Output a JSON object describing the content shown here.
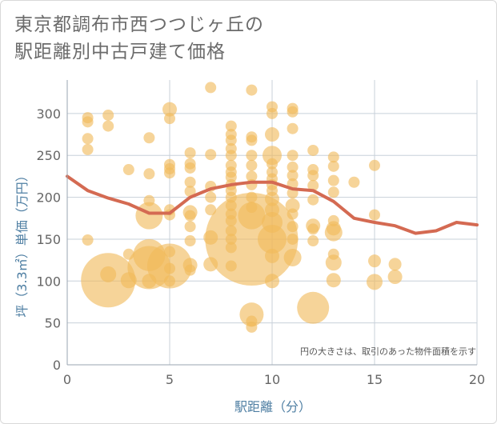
{
  "chart_data": {
    "type": "scatter",
    "title": [
      "東京都調布市西つつじヶ丘の",
      "駅距離別中古戸建て価格"
    ],
    "xlabel": "駅距離（分）",
    "ylabel": "坪（3.3㎡）単価（万円）",
    "xlim": [
      0,
      20
    ],
    "ylim": [
      0,
      340
    ],
    "xticks": [
      0,
      5,
      10,
      15,
      20
    ],
    "yticks": [
      0,
      50,
      100,
      150,
      200,
      250,
      300
    ],
    "grid": true,
    "annotation": "円の大きさは、取引のあった物件面積を示す",
    "colors": {
      "bubble": "#f0b95a",
      "trend": "#d46a52",
      "grid": "#c8d0da",
      "tick_text": "#666666",
      "axis_label": "#4f7fa3"
    },
    "series": [
      {
        "kind": "bubble",
        "points": [
          {
            "x": 1,
            "y": 295,
            "r": 7
          },
          {
            "x": 1,
            "y": 290,
            "r": 7
          },
          {
            "x": 1,
            "y": 270,
            "r": 7
          },
          {
            "x": 1,
            "y": 257,
            "r": 7
          },
          {
            "x": 1,
            "y": 149,
            "r": 7
          },
          {
            "x": 2,
            "y": 298,
            "r": 7
          },
          {
            "x": 2,
            "y": 285,
            "r": 7
          },
          {
            "x": 2,
            "y": 101,
            "r": 34
          },
          {
            "x": 2,
            "y": 108,
            "r": 10
          },
          {
            "x": 3,
            "y": 233,
            "r": 7
          },
          {
            "x": 3,
            "y": 132,
            "r": 7
          },
          {
            "x": 3,
            "y": 101,
            "r": 10
          },
          {
            "x": 4,
            "y": 271,
            "r": 7
          },
          {
            "x": 4,
            "y": 228,
            "r": 7
          },
          {
            "x": 4,
            "y": 196,
            "r": 7
          },
          {
            "x": 4,
            "y": 178,
            "r": 17
          },
          {
            "x": 4,
            "y": 131,
            "r": 20
          },
          {
            "x": 4,
            "y": 116,
            "r": 27
          },
          {
            "x": 4,
            "y": 100,
            "r": 9
          },
          {
            "x": 5,
            "y": 305,
            "r": 9
          },
          {
            "x": 5,
            "y": 294,
            "r": 7
          },
          {
            "x": 5,
            "y": 239,
            "r": 7
          },
          {
            "x": 5,
            "y": 234,
            "r": 7
          },
          {
            "x": 5,
            "y": 229,
            "r": 7
          },
          {
            "x": 5,
            "y": 185,
            "r": 7
          },
          {
            "x": 5,
            "y": 179,
            "r": 7
          },
          {
            "x": 5,
            "y": 135,
            "r": 7
          },
          {
            "x": 5,
            "y": 118,
            "r": 28
          },
          {
            "x": 5,
            "y": 115,
            "r": 7
          },
          {
            "x": 5,
            "y": 100,
            "r": 7
          },
          {
            "x": 6,
            "y": 253,
            "r": 7
          },
          {
            "x": 6,
            "y": 240,
            "r": 7
          },
          {
            "x": 6,
            "y": 235,
            "r": 7
          },
          {
            "x": 6,
            "y": 218,
            "r": 7
          },
          {
            "x": 6,
            "y": 207,
            "r": 7
          },
          {
            "x": 6,
            "y": 182,
            "r": 9
          },
          {
            "x": 6,
            "y": 178,
            "r": 7
          },
          {
            "x": 6,
            "y": 165,
            "r": 7
          },
          {
            "x": 6,
            "y": 148,
            "r": 7
          },
          {
            "x": 6,
            "y": 119,
            "r": 9
          },
          {
            "x": 6,
            "y": 113,
            "r": 7
          },
          {
            "x": 7,
            "y": 331,
            "r": 7
          },
          {
            "x": 7,
            "y": 251,
            "r": 7
          },
          {
            "x": 7,
            "y": 213,
            "r": 7
          },
          {
            "x": 7,
            "y": 200,
            "r": 7
          },
          {
            "x": 7,
            "y": 185,
            "r": 7
          },
          {
            "x": 7,
            "y": 152,
            "r": 9
          },
          {
            "x": 7,
            "y": 120,
            "r": 9
          },
          {
            "x": 8,
            "y": 285,
            "r": 7
          },
          {
            "x": 8,
            "y": 275,
            "r": 7
          },
          {
            "x": 8,
            "y": 268,
            "r": 7
          },
          {
            "x": 8,
            "y": 258,
            "r": 7
          },
          {
            "x": 8,
            "y": 250,
            "r": 7
          },
          {
            "x": 8,
            "y": 238,
            "r": 7
          },
          {
            "x": 8,
            "y": 230,
            "r": 7
          },
          {
            "x": 8,
            "y": 224,
            "r": 7
          },
          {
            "x": 8,
            "y": 215,
            "r": 7
          },
          {
            "x": 8,
            "y": 208,
            "r": 7
          },
          {
            "x": 8,
            "y": 200,
            "r": 7
          },
          {
            "x": 8,
            "y": 190,
            "r": 7
          },
          {
            "x": 8,
            "y": 180,
            "r": 7
          },
          {
            "x": 8,
            "y": 172,
            "r": 7
          },
          {
            "x": 8,
            "y": 160,
            "r": 7
          },
          {
            "x": 8,
            "y": 150,
            "r": 7
          },
          {
            "x": 8,
            "y": 140,
            "r": 7
          },
          {
            "x": 8,
            "y": 118,
            "r": 7
          },
          {
            "x": 9,
            "y": 328,
            "r": 7
          },
          {
            "x": 9,
            "y": 272,
            "r": 7
          },
          {
            "x": 9,
            "y": 268,
            "r": 7
          },
          {
            "x": 9,
            "y": 250,
            "r": 7
          },
          {
            "x": 9,
            "y": 238,
            "r": 7
          },
          {
            "x": 9,
            "y": 225,
            "r": 7
          },
          {
            "x": 9,
            "y": 215,
            "r": 7
          },
          {
            "x": 9,
            "y": 200,
            "r": 7
          },
          {
            "x": 9,
            "y": 188,
            "r": 7
          },
          {
            "x": 9,
            "y": 178,
            "r": 17
          },
          {
            "x": 9,
            "y": 150,
            "r": 58
          },
          {
            "x": 9,
            "y": 60,
            "r": 15
          },
          {
            "x": 9,
            "y": 52,
            "r": 7
          },
          {
            "x": 9,
            "y": 45,
            "r": 7
          },
          {
            "x": 10,
            "y": 308,
            "r": 7
          },
          {
            "x": 10,
            "y": 300,
            "r": 7
          },
          {
            "x": 10,
            "y": 275,
            "r": 9
          },
          {
            "x": 10,
            "y": 250,
            "r": 12
          },
          {
            "x": 10,
            "y": 240,
            "r": 7
          },
          {
            "x": 10,
            "y": 230,
            "r": 7
          },
          {
            "x": 10,
            "y": 222,
            "r": 7
          },
          {
            "x": 10,
            "y": 215,
            "r": 7
          },
          {
            "x": 10,
            "y": 208,
            "r": 7
          },
          {
            "x": 10,
            "y": 198,
            "r": 9
          },
          {
            "x": 10,
            "y": 185,
            "r": 9
          },
          {
            "x": 10,
            "y": 170,
            "r": 13
          },
          {
            "x": 10,
            "y": 150,
            "r": 18
          },
          {
            "x": 10,
            "y": 130,
            "r": 9
          },
          {
            "x": 10,
            "y": 100,
            "r": 9
          },
          {
            "x": 11,
            "y": 306,
            "r": 7
          },
          {
            "x": 11,
            "y": 302,
            "r": 7
          },
          {
            "x": 11,
            "y": 282,
            "r": 7
          },
          {
            "x": 11,
            "y": 250,
            "r": 7
          },
          {
            "x": 11,
            "y": 236,
            "r": 7
          },
          {
            "x": 11,
            "y": 226,
            "r": 7
          },
          {
            "x": 11,
            "y": 216,
            "r": 7
          },
          {
            "x": 11,
            "y": 205,
            "r": 7
          },
          {
            "x": 11,
            "y": 190,
            "r": 9
          },
          {
            "x": 11,
            "y": 180,
            "r": 7
          },
          {
            "x": 11,
            "y": 165,
            "r": 7
          },
          {
            "x": 11,
            "y": 150,
            "r": 7
          },
          {
            "x": 11,
            "y": 128,
            "r": 11
          },
          {
            "x": 12,
            "y": 256,
            "r": 7
          },
          {
            "x": 12,
            "y": 233,
            "r": 7
          },
          {
            "x": 12,
            "y": 226,
            "r": 7
          },
          {
            "x": 12,
            "y": 214,
            "r": 7
          },
          {
            "x": 12,
            "y": 197,
            "r": 7
          },
          {
            "x": 12,
            "y": 166,
            "r": 9
          },
          {
            "x": 12,
            "y": 162,
            "r": 7
          },
          {
            "x": 12,
            "y": 148,
            "r": 7
          },
          {
            "x": 12,
            "y": 68,
            "r": 20
          },
          {
            "x": 13,
            "y": 248,
            "r": 7
          },
          {
            "x": 13,
            "y": 237,
            "r": 7
          },
          {
            "x": 13,
            "y": 220,
            "r": 7
          },
          {
            "x": 13,
            "y": 206,
            "r": 7
          },
          {
            "x": 13,
            "y": 172,
            "r": 7
          },
          {
            "x": 13,
            "y": 163,
            "r": 9
          },
          {
            "x": 13,
            "y": 158,
            "r": 11
          },
          {
            "x": 13,
            "y": 132,
            "r": 7
          },
          {
            "x": 13,
            "y": 122,
            "r": 10
          },
          {
            "x": 13,
            "y": 101,
            "r": 9
          },
          {
            "x": 14,
            "y": 218,
            "r": 7
          },
          {
            "x": 15,
            "y": 238,
            "r": 7
          },
          {
            "x": 15,
            "y": 179,
            "r": 7
          },
          {
            "x": 15,
            "y": 124,
            "r": 8
          },
          {
            "x": 15,
            "y": 99,
            "r": 10
          },
          {
            "x": 16,
            "y": 120,
            "r": 8
          },
          {
            "x": 16,
            "y": 105,
            "r": 9
          }
        ]
      },
      {
        "kind": "line",
        "x": [
          0,
          1,
          2,
          3,
          4,
          5,
          6,
          7,
          8,
          9,
          10,
          11,
          12,
          13,
          14,
          15,
          16,
          17,
          18,
          19,
          20
        ],
        "y": [
          225,
          208,
          199,
          192,
          181,
          181,
          200,
          210,
          215,
          218,
          218,
          210,
          208,
          195,
          175,
          170,
          166,
          157,
          160,
          170,
          167
        ]
      }
    ]
  }
}
